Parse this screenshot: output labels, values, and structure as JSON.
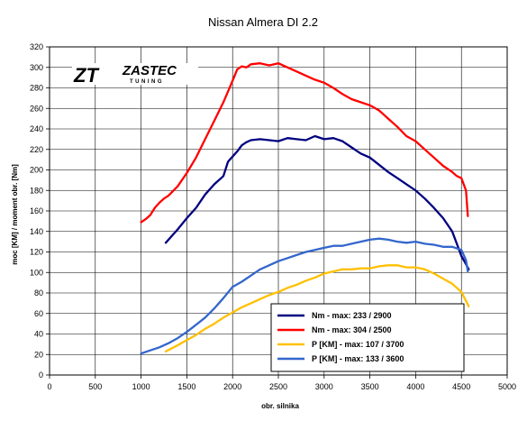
{
  "chart_data": {
    "type": "line",
    "title": "Nissan Almera DI 2.2",
    "xlabel": "obr. silnika",
    "ylabel": "moc [KM] / moment obr. [Nm]",
    "xlim": [
      0,
      5000
    ],
    "ylim": [
      0,
      320
    ],
    "x_ticks": [
      0,
      500,
      1000,
      1500,
      2000,
      2500,
      3000,
      3500,
      4000,
      4500,
      5000
    ],
    "y_ticks": [
      0,
      20,
      40,
      60,
      80,
      100,
      120,
      140,
      160,
      180,
      200,
      220,
      240,
      260,
      280,
      300,
      320
    ],
    "grid": true,
    "legend_position": "bottom-right",
    "logo": {
      "mark": "ZT",
      "name": "ZASTEC",
      "sub": "TUNING"
    },
    "series": [
      {
        "name": "Nm - max: 233 / 2900",
        "color": "#000080",
        "x": [
          1270,
          1400,
          1500,
          1600,
          1700,
          1800,
          1900,
          1950,
          2000,
          2050,
          2100,
          2150,
          2200,
          2300,
          2400,
          2500,
          2600,
          2700,
          2800,
          2900,
          3000,
          3100,
          3200,
          3300,
          3400,
          3500,
          3600,
          3700,
          3800,
          3900,
          4000,
          4100,
          4200,
          4300,
          4400,
          4450,
          4500,
          4550,
          4580
        ],
        "y": [
          129,
          142,
          153,
          163,
          176,
          186,
          194,
          208,
          213,
          218,
          224,
          227,
          229,
          230,
          229,
          228,
          231,
          230,
          229,
          233,
          230,
          231,
          228,
          222,
          216,
          212,
          205,
          198,
          192,
          186,
          180,
          172,
          163,
          153,
          140,
          128,
          116,
          108,
          103
        ]
      },
      {
        "name": "Nm - max: 304 / 2500",
        "color": "#ff0000",
        "x": [
          1000,
          1050,
          1100,
          1150,
          1200,
          1250,
          1300,
          1400,
          1500,
          1600,
          1700,
          1800,
          1900,
          2000,
          2050,
          2100,
          2150,
          2200,
          2300,
          2400,
          2500,
          2600,
          2700,
          2800,
          2900,
          3000,
          3100,
          3200,
          3300,
          3400,
          3500,
          3600,
          3700,
          3800,
          3900,
          4000,
          4100,
          4200,
          4300,
          4400,
          4450,
          4500,
          4550,
          4570
        ],
        "y": [
          149,
          152,
          156,
          163,
          168,
          172,
          175,
          184,
          197,
          212,
          230,
          248,
          266,
          287,
          298,
          301,
          300,
          303,
          304,
          302,
          304,
          300,
          296,
          292,
          288,
          285,
          280,
          274,
          269,
          266,
          263,
          258,
          250,
          242,
          233,
          228,
          220,
          212,
          204,
          198,
          194,
          192,
          180,
          155
        ]
      },
      {
        "name": "P [KM] - max: 107 / 3700",
        "color": "#ffc000",
        "x": [
          1270,
          1400,
          1500,
          1600,
          1700,
          1800,
          1900,
          2000,
          2100,
          2200,
          2300,
          2400,
          2500,
          2600,
          2700,
          2800,
          2900,
          3000,
          3100,
          3200,
          3300,
          3400,
          3500,
          3600,
          3700,
          3800,
          3900,
          4000,
          4100,
          4200,
          4300,
          4400,
          4500,
          4580
        ],
        "y": [
          23,
          29,
          34,
          39,
          45,
          50,
          56,
          61,
          66,
          70,
          74,
          78,
          81,
          85,
          88,
          92,
          95,
          99,
          101,
          103,
          103,
          104,
          104,
          106,
          107,
          107,
          105,
          105,
          103,
          99,
          94,
          89,
          81,
          67
        ]
      },
      {
        "name": "P [KM] - max: 133 / 3600",
        "color": "#3366cc",
        "x": [
          1000,
          1100,
          1200,
          1300,
          1400,
          1500,
          1600,
          1700,
          1800,
          1900,
          2000,
          2100,
          2200,
          2300,
          2400,
          2500,
          2600,
          2700,
          2800,
          2900,
          3000,
          3100,
          3200,
          3300,
          3400,
          3500,
          3600,
          3700,
          3800,
          3900,
          4000,
          4100,
          4200,
          4300,
          4400,
          4500,
          4550,
          4570
        ],
        "y": [
          21,
          24,
          27,
          31,
          36,
          42,
          49,
          56,
          65,
          75,
          86,
          91,
          97,
          103,
          107,
          111,
          114,
          117,
          120,
          122,
          124,
          126,
          126,
          128,
          130,
          132,
          133,
          132,
          130,
          129,
          130,
          128,
          127,
          125,
          125,
          122,
          112,
          101
        ]
      }
    ]
  }
}
